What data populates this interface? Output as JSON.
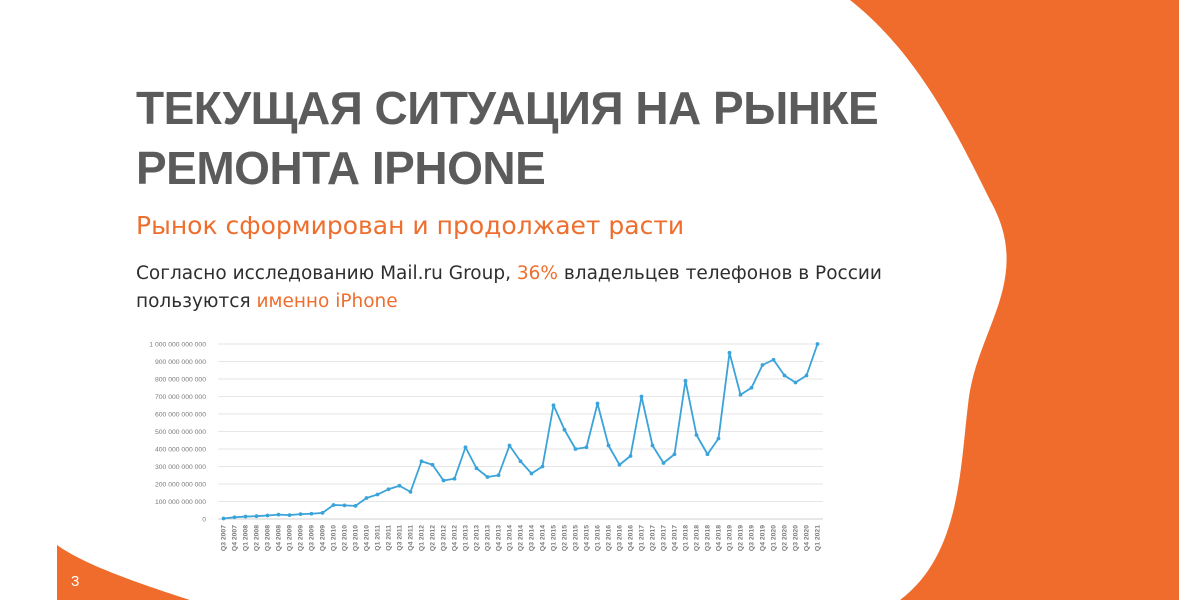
{
  "slide": {
    "title_line1": "ТЕКУЩАЯ СИТУАЦИЯ НА РЫНКЕ",
    "title_line2": "РЕМОНТА IPHONE",
    "subtitle": "Рынок сформирован и продолжает расти",
    "body_part1": "Согласно исследованию Mail.ru Group, ",
    "body_highlight1": "36%",
    "body_part2": " владельцев телефонов в России пользуются ",
    "body_highlight2": "именно iPhone",
    "page_number": "3",
    "accent_color": "#ee6e2e",
    "title_color": "#5b5b5b"
  },
  "chart_data": {
    "type": "line",
    "categories": [
      "Q3 2007",
      "Q4 2007",
      "Q1 2008",
      "Q2 2008",
      "Q3 2008",
      "Q4 2008",
      "Q1 2009",
      "Q2 2009",
      "Q3 2009",
      "Q4 2009",
      "Q1 2010",
      "Q2 2010",
      "Q3 2010",
      "Q4 2010",
      "Q1 2011",
      "Q2 2011",
      "Q3 2011",
      "Q4 2011",
      "Q1 2012",
      "Q2 2012",
      "Q3 2012",
      "Q4 2012",
      "Q1 2013",
      "Q2 2013",
      "Q3 2013",
      "Q4 2013",
      "Q1 2014",
      "Q2 2014",
      "Q3 2014",
      "Q4 2014",
      "Q1 2015",
      "Q2 2015",
      "Q3 2015",
      "Q4 2015",
      "Q1 2016",
      "Q2 2016",
      "Q3 2016",
      "Q4 2016",
      "Q1 2017",
      "Q2 2017",
      "Q3 2017",
      "Q4 2017",
      "Q1 2018",
      "Q2 2018",
      "Q3 2018",
      "Q4 2018",
      "Q1 2019",
      "Q2 2019",
      "Q3 2019",
      "Q4 2019",
      "Q1 2020",
      "Q2 2020",
      "Q3 2020",
      "Q4 2020",
      "Q1 2021"
    ],
    "series": [
      {
        "color": "#3aa3d9",
        "values": [
          3000000000,
          10000000000,
          14000000000,
          16000000000,
          20000000000,
          25000000000,
          22000000000,
          28000000000,
          30000000000,
          35000000000,
          80000000000,
          78000000000,
          75000000000,
          120000000000,
          140000000000,
          170000000000,
          190000000000,
          155000000000,
          330000000000,
          310000000000,
          220000000000,
          230000000000,
          410000000000,
          290000000000,
          240000000000,
          250000000000,
          420000000000,
          330000000000,
          260000000000,
          300000000000,
          650000000000,
          510000000000,
          400000000000,
          410000000000,
          660000000000,
          420000000000,
          310000000000,
          360000000000,
          700000000000,
          420000000000,
          320000000000,
          370000000000,
          790000000000,
          480000000000,
          370000000000,
          460000000000,
          950000000000,
          710000000000,
          750000000000,
          880000000000,
          910000000000,
          820000000000,
          780000000000,
          820000000000,
          1000000000000
        ]
      }
    ],
    "y_ticks": [
      "0",
      "100 000 000 000",
      "200 000 000 000",
      "300 000 000 000",
      "400 000 000 000",
      "500 000 000 000",
      "600 000 000 000",
      "700 000 000 000",
      "800 000 000 000",
      "900 000 000 000",
      "1 000 000 000 000"
    ],
    "ylim": [
      0,
      1000000000000
    ],
    "grid": true,
    "legend": "none",
    "title": "",
    "xlabel": "",
    "ylabel": ""
  }
}
